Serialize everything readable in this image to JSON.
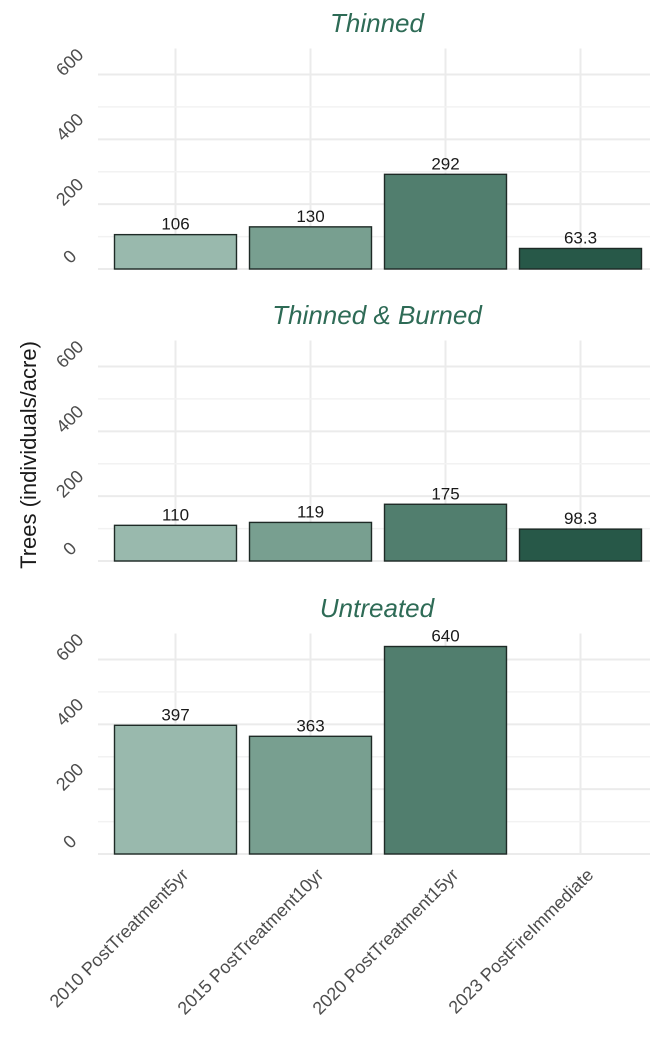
{
  "chart_data": {
    "type": "bar",
    "ylabel": "Trees (individuals/acre)",
    "categories": [
      "2010 PostTreatment5yr",
      "2015 PostTreatment10yr",
      "2020 PostTreatment15yr",
      "2023 PostFireImmediate"
    ],
    "ylim": [
      0,
      680
    ],
    "yticks": [
      0,
      200,
      400,
      600
    ],
    "grid": true,
    "colors": [
      "#99b9ad",
      "#789f90",
      "#517e6e",
      "#275848"
    ],
    "title_color": "#2e6b56",
    "panels": [
      {
        "title": "Thinned",
        "values": [
          106,
          130,
          292,
          63.3
        ],
        "value_labels": [
          "106",
          "130",
          "292",
          "63.3"
        ]
      },
      {
        "title": "Thinned & Burned",
        "values": [
          110,
          119,
          175,
          98.3
        ],
        "value_labels": [
          "110",
          "119",
          "175",
          "98.3"
        ]
      },
      {
        "title": "Untreated",
        "values": [
          397,
          363,
          640,
          null
        ],
        "value_labels": [
          "397",
          "363",
          "640",
          ""
        ]
      }
    ]
  }
}
